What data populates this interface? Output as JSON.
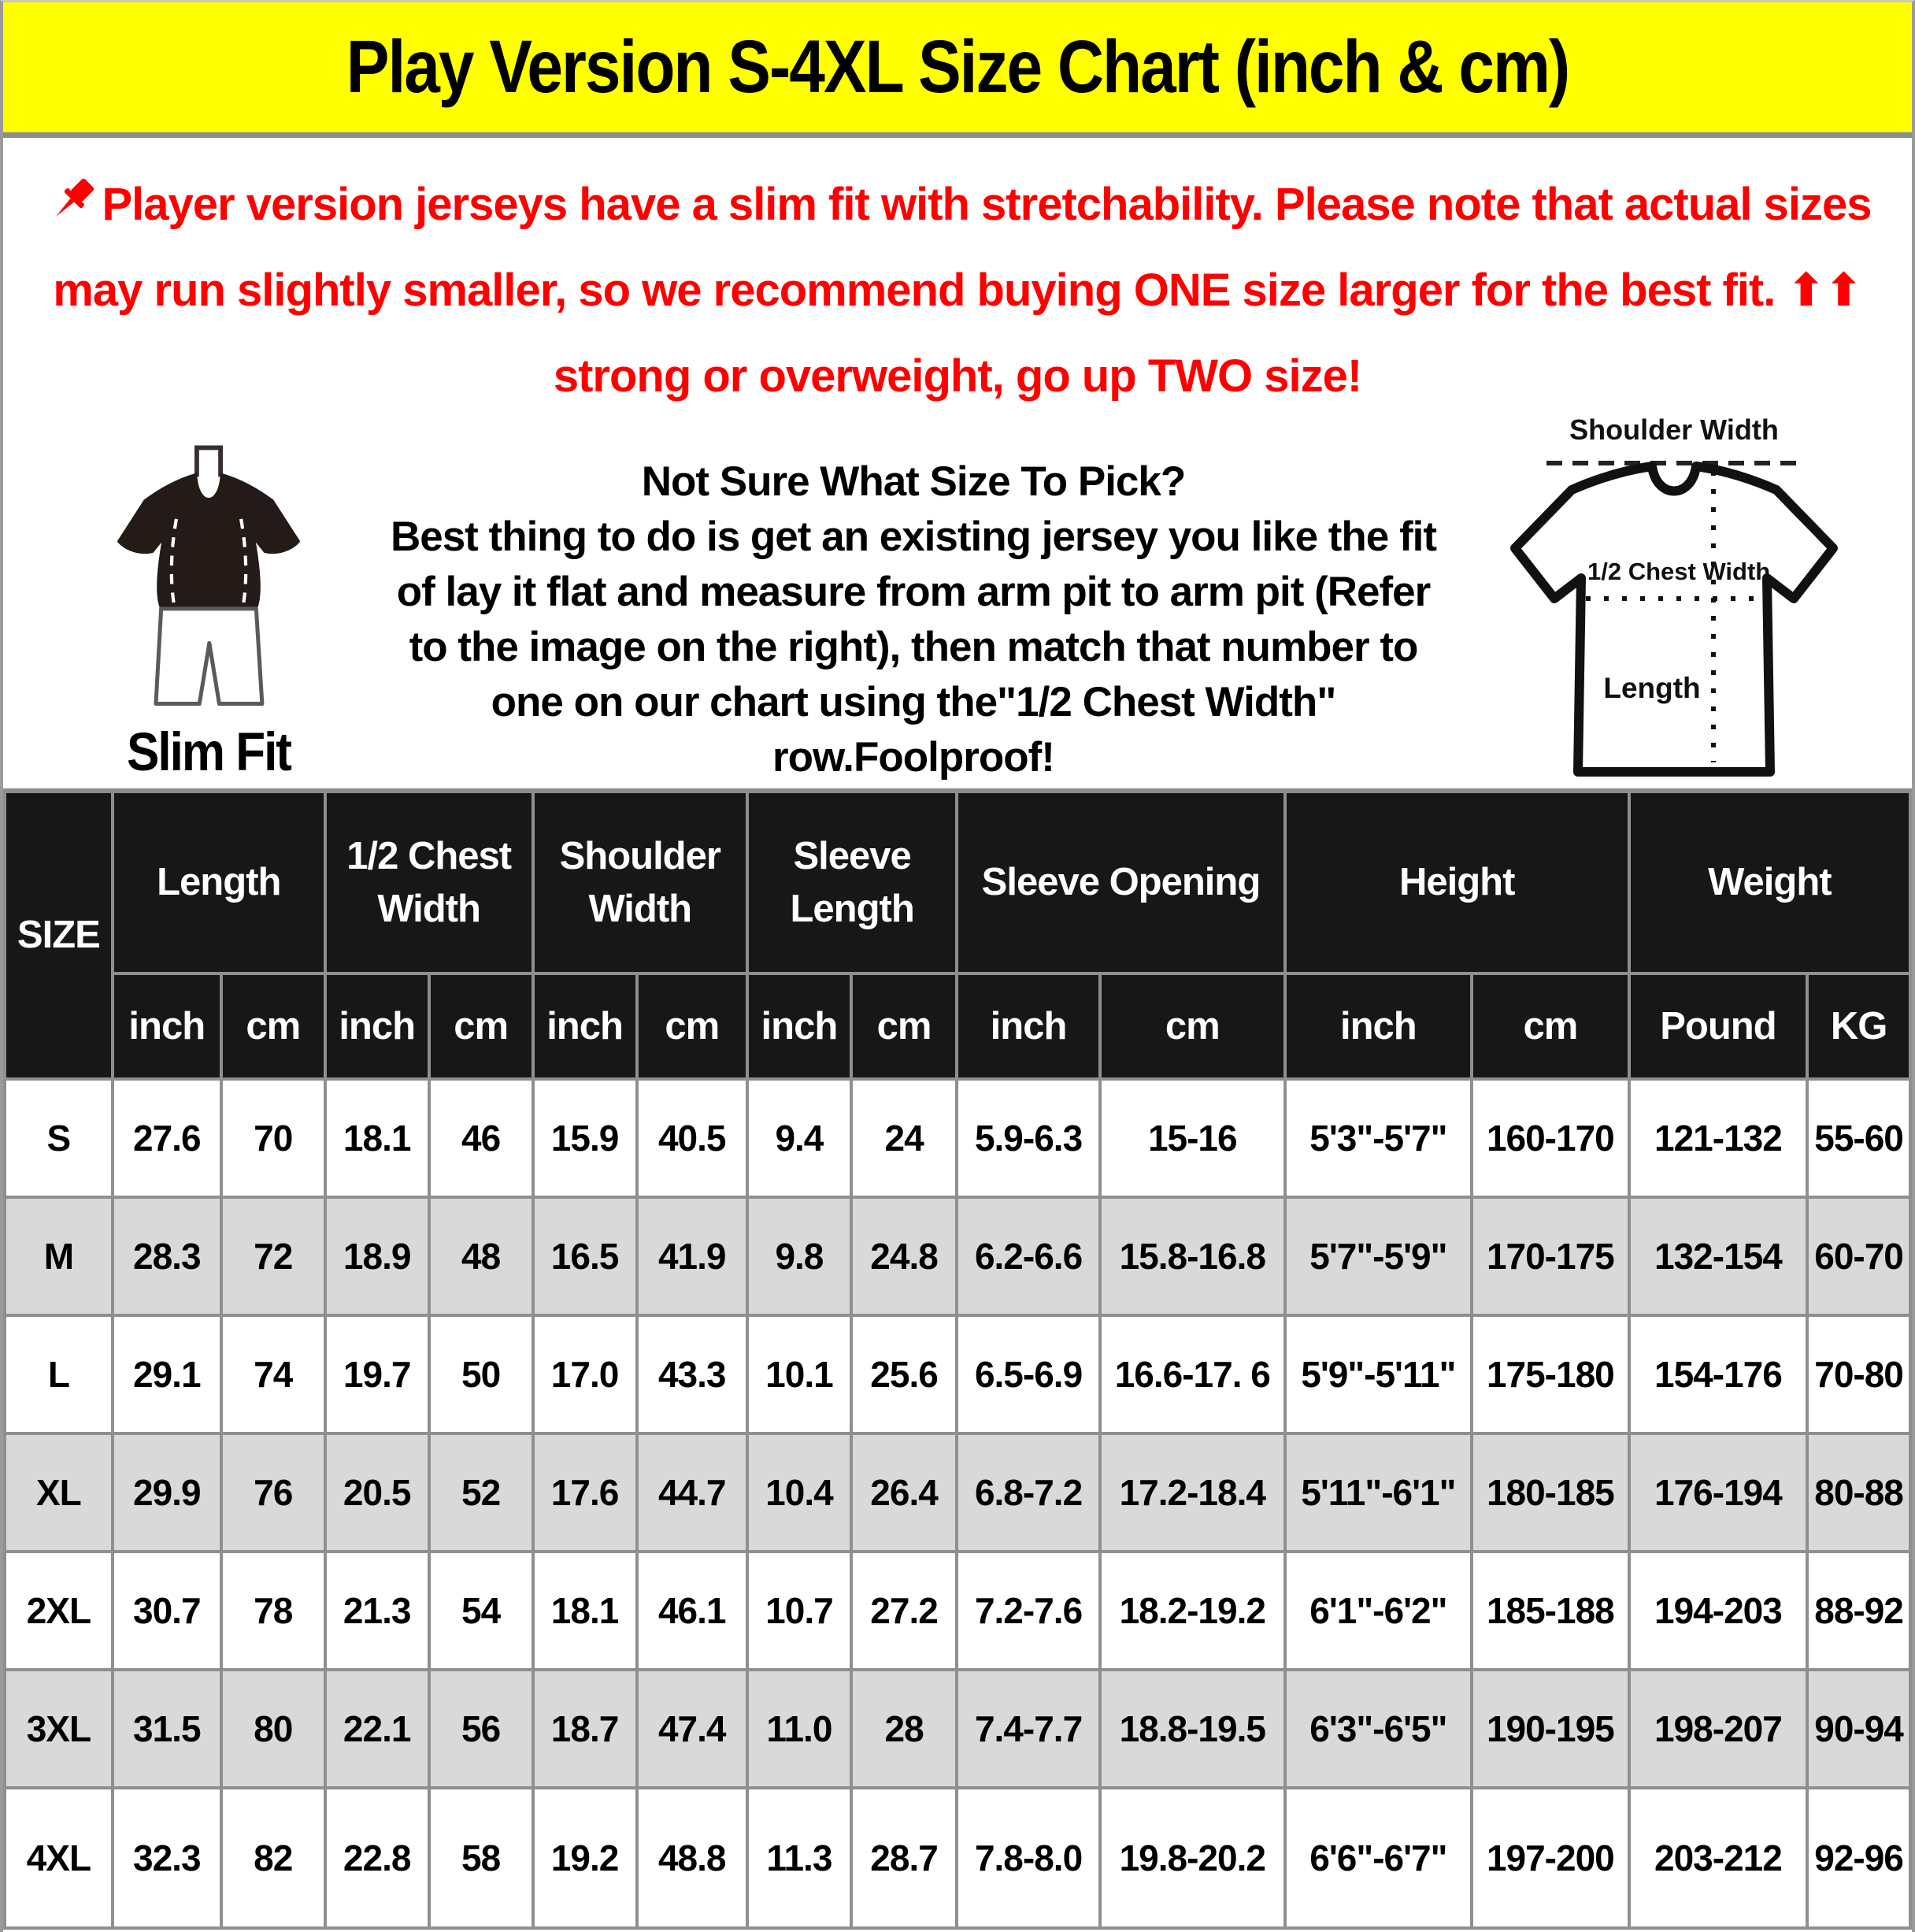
{
  "banner": {
    "title": "Play Version S-4XL Size Chart (inch & cm)",
    "bg_color": "#ffff00"
  },
  "notice": {
    "icon": "pushpin-icon",
    "text": "Player version jerseys have a slim fit with stretchability. Please note that actual sizes may run slightly smaller, so we recommend buying ONE size larger for the best fit. ⬆⬆ strong or overweight, go up TWO size!",
    "color": "#ff0000"
  },
  "figure": {
    "label": "Slim Fit"
  },
  "help": {
    "heading": "Not Sure What Size To Pick?",
    "body": "Best thing to do is get an existing jersey you like the fit of lay it flat and measure from arm pit to arm pit (Refer to the image on the right), then match that number to one on our chart using the\"1/2 Chest Width\" row.Foolproof!"
  },
  "diagram": {
    "shoulder_label": "Shoulder Width",
    "chest_label": "1/2 Chest Width",
    "length_label": "Length"
  },
  "table": {
    "size_header": "SIZE",
    "groups": [
      {
        "label": "Length",
        "subs": [
          "inch",
          "cm"
        ]
      },
      {
        "label": "1/2 Chest Width",
        "subs": [
          "inch",
          "cm"
        ]
      },
      {
        "label": "Shoulder Width",
        "subs": [
          "inch",
          "cm"
        ]
      },
      {
        "label": "Sleeve Length",
        "subs": [
          "inch",
          "cm"
        ]
      },
      {
        "label": "Sleeve Opening",
        "subs": [
          "inch",
          "cm"
        ]
      },
      {
        "label": "Height",
        "subs": [
          "inch",
          "cm"
        ]
      },
      {
        "label": "Weight",
        "subs": [
          "Pound",
          "KG"
        ]
      }
    ],
    "rows": [
      [
        "S",
        "27.6",
        "70",
        "18.1",
        "46",
        "15.9",
        "40.5",
        "9.4",
        "24",
        "5.9-6.3",
        "15-16",
        "5'3\"-5'7\"",
        "160-170",
        "121-132",
        "55-60"
      ],
      [
        "M",
        "28.3",
        "72",
        "18.9",
        "48",
        "16.5",
        "41.9",
        "9.8",
        "24.8",
        "6.2-6.6",
        "15.8-16.8",
        "5'7\"-5'9\"",
        "170-175",
        "132-154",
        "60-70"
      ],
      [
        "L",
        "29.1",
        "74",
        "19.7",
        "50",
        "17.0",
        "43.3",
        "10.1",
        "25.6",
        "6.5-6.9",
        "16.6-17. 6",
        "5'9\"-5'11\"",
        "175-180",
        "154-176",
        "70-80"
      ],
      [
        "XL",
        "29.9",
        "76",
        "20.5",
        "52",
        "17.6",
        "44.7",
        "10.4",
        "26.4",
        "6.8-7.2",
        "17.2-18.4",
        "5'11\"-6'1\"",
        "180-185",
        "176-194",
        "80-88"
      ],
      [
        "2XL",
        "30.7",
        "78",
        "21.3",
        "54",
        "18.1",
        "46.1",
        "10.7",
        "27.2",
        "7.2-7.6",
        "18.2-19.2",
        "6'1\"-6'2\"",
        "185-188",
        "194-203",
        "88-92"
      ],
      [
        "3XL",
        "31.5",
        "80",
        "22.1",
        "56",
        "18.7",
        "47.4",
        "11.0",
        "28",
        "7.4-7.7",
        "18.8-19.5",
        "6'3\"-6'5\"",
        "190-195",
        "198-207",
        "90-94"
      ],
      [
        "4XL",
        "32.3",
        "82",
        "22.8",
        "58",
        "19.2",
        "48.8",
        "11.3",
        "28.7",
        "7.8-8.0",
        "19.8-20.2",
        "6'6\"-6'7\"",
        "197-200",
        "203-212",
        "92-96"
      ]
    ]
  },
  "colors": {
    "banner_yellow": "#ffff00",
    "notice_red": "#ff0000",
    "header_bg": "#171717",
    "row_alt_gray": "#d9d9d9",
    "grid_gray": "#8f8f8f"
  }
}
